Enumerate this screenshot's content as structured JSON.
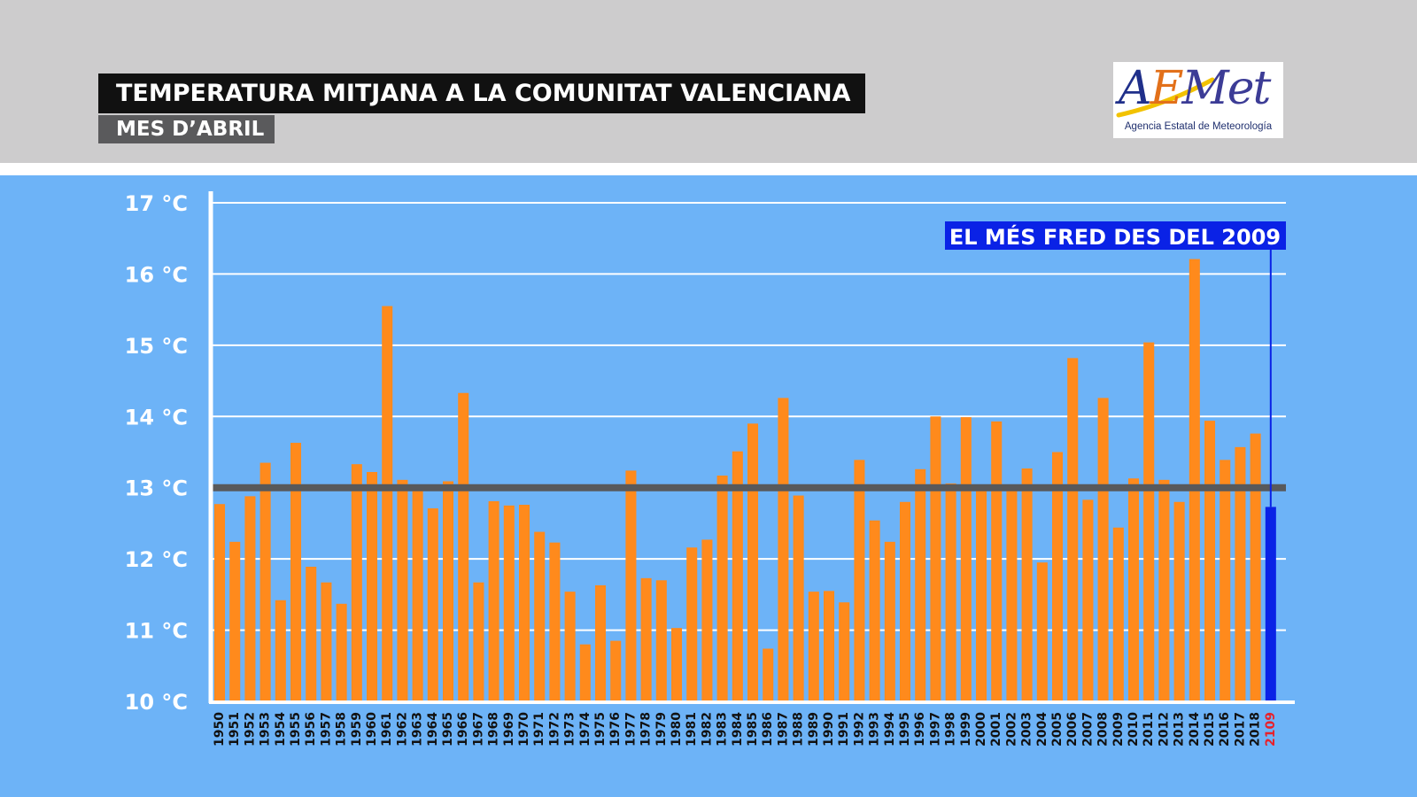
{
  "header": {
    "title": "TEMPERATURA MITJANA A LA COMUNITAT VALENCIANA",
    "subtitle": "MES D’ABRIL"
  },
  "logo": {
    "wordmark": [
      "A",
      "E",
      "M",
      "et"
    ],
    "wordmark_colors": [
      "#1f2f8a",
      "#e2701a",
      "#3c3c96",
      "#3c3c96"
    ],
    "swoosh_color": "#f2c200",
    "caption": "Agencia Estatal de Meteorología"
  },
  "colors": {
    "background": "#6db3f7",
    "bar": "#ff8a1c",
    "highlight_bar": "#0a22e6",
    "mean_line": "#58595b",
    "highlight_label": "#e8202a"
  },
  "chart_data": {
    "type": "bar",
    "title": "TEMPERATURA MITJANA A LA COMUNITAT VALENCIANA",
    "subtitle": "MES D’ABRIL",
    "ylim": [
      10,
      17
    ],
    "yticks": [
      10,
      11,
      12,
      13,
      14,
      15,
      16,
      17
    ],
    "ytick_labels": [
      "10 °C",
      "11 °C",
      "12 °C",
      "13 °C",
      "14 °C",
      "15 °C",
      "16 °C",
      "17 °C"
    ],
    "grid": true,
    "reference_line": 13.0,
    "categories": [
      "1950",
      "1951",
      "1952",
      "1953",
      "1954",
      "1955",
      "1956",
      "1957",
      "1958",
      "1959",
      "1960",
      "1961",
      "1962",
      "1963",
      "1964",
      "1965",
      "1966",
      "1967",
      "1968",
      "1969",
      "1970",
      "1971",
      "1972",
      "1973",
      "1974",
      "1975",
      "1976",
      "1977",
      "1978",
      "1979",
      "1980",
      "1981",
      "1982",
      "1983",
      "1984",
      "1985",
      "1986",
      "1987",
      "1988",
      "1989",
      "1990",
      "1991",
      "1992",
      "1993",
      "1994",
      "1995",
      "1996",
      "1997",
      "1998",
      "1999",
      "2000",
      "2001",
      "2002",
      "2003",
      "2004",
      "2005",
      "2006",
      "2007",
      "2008",
      "2009",
      "2010",
      "2011",
      "2012",
      "2013",
      "2014",
      "2015",
      "2016",
      "2017",
      "2018",
      "2109"
    ],
    "values": [
      12.77,
      12.24,
      12.88,
      13.35,
      11.42,
      13.63,
      11.89,
      11.67,
      11.37,
      13.33,
      13.22,
      15.55,
      13.11,
      13.0,
      12.71,
      13.09,
      14.33,
      11.67,
      12.81,
      12.75,
      12.76,
      12.38,
      12.23,
      11.54,
      10.8,
      11.63,
      10.85,
      13.24,
      11.73,
      11.7,
      11.03,
      12.16,
      12.27,
      13.17,
      13.51,
      13.9,
      10.74,
      14.26,
      12.89,
      11.54,
      11.55,
      11.39,
      13.39,
      12.54,
      12.24,
      12.8,
      13.26,
      14.0,
      13.06,
      13.99,
      12.97,
      13.93,
      12.98,
      13.27,
      11.95,
      13.5,
      14.82,
      12.83,
      14.26,
      12.44,
      13.13,
      15.04,
      13.11,
      12.8,
      16.21,
      13.94,
      13.39,
      13.57,
      13.76,
      12.73
    ],
    "highlight_index": 69,
    "annotation": "EL MÉS FRED DES DEL 2009"
  }
}
